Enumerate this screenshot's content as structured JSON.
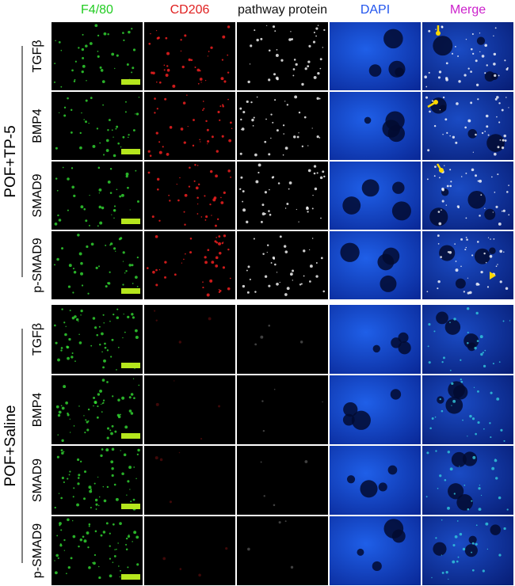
{
  "header": {
    "columns": [
      "F4/80",
      "CD206",
      "pathway protein",
      "DAPI",
      "Merge"
    ]
  },
  "groups": [
    {
      "label": "POF+TP-5",
      "rows": [
        "TGFβ",
        "BMP4",
        "SMAD9",
        "p-SMAD9"
      ]
    },
    {
      "label": "POF+Saline",
      "rows": [
        "TGFβ",
        "BMP4",
        "SMAD9",
        "p-SMAD9"
      ]
    }
  ]
}
